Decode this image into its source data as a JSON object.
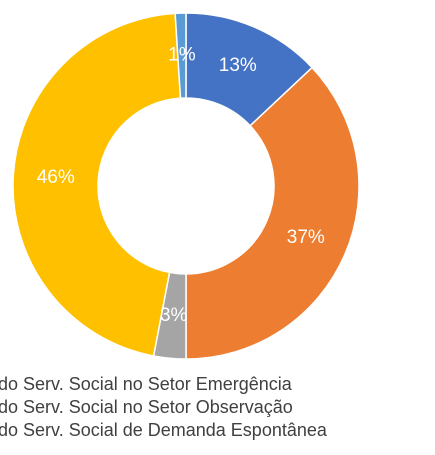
{
  "chart_data": {
    "type": "pie",
    "categories": [
      "do Serv. Social no Setor Emergência",
      "do Serv. Social no Setor Observação",
      "do Serv. Social de Demanda Espontânea",
      null,
      null
    ],
    "values": [
      13,
      37,
      3,
      46,
      1
    ],
    "value_labels": [
      "13%",
      "37%",
      "3%",
      "46%",
      "1%"
    ],
    "colors": [
      "#4472c4",
      "#ed7d31",
      "#a5a5a5",
      "#ffc000",
      "#5b9bd5"
    ],
    "donut": true
  }
}
